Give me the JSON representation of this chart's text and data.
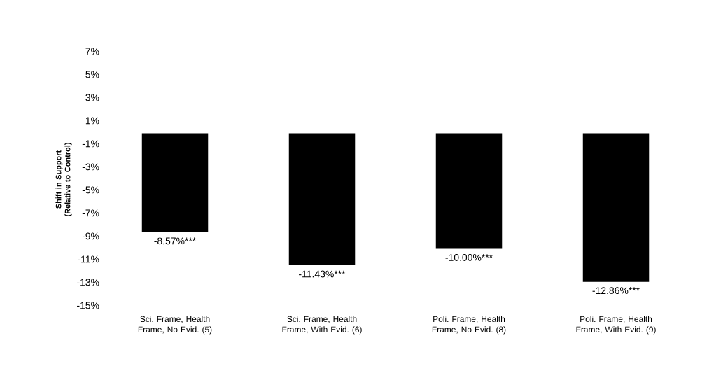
{
  "chart_data": {
    "type": "bar",
    "ylabel": "Shift in Support (Relative to Control)",
    "categories": [
      "Sci. Frame, Health Frame, No Evid. (5)",
      "Sci. Frame, Health Frame, With Evid. (6)",
      "Poli. Frame, Health Frame, No Evid. (8)",
      "Poli. Frame, Health Frame, With Evid. (9)"
    ],
    "values": [
      -8.57,
      -11.43,
      -10.0,
      -12.86
    ],
    "value_labels": [
      "-8.57%***",
      "-11.43%***",
      "-10.00%***",
      "-12.86%***"
    ],
    "color": "#000000",
    "ylim": [
      -15,
      7
    ],
    "yticks": [
      {
        "value": -15,
        "label": "-15%"
      },
      {
        "value": -13,
        "label": "-13%"
      },
      {
        "value": -11,
        "label": "-11%"
      },
      {
        "value": -9,
        "label": "-9%"
      },
      {
        "value": -7,
        "label": "-7%"
      },
      {
        "value": -5,
        "label": "-5%"
      },
      {
        "value": -3,
        "label": "-3%"
      },
      {
        "value": -1,
        "label": "-1%"
      },
      {
        "value": 1,
        "label": "1%"
      },
      {
        "value": 3,
        "label": "3%"
      },
      {
        "value": 5,
        "label": "5%"
      },
      {
        "value": 7,
        "label": "7%"
      }
    ]
  }
}
